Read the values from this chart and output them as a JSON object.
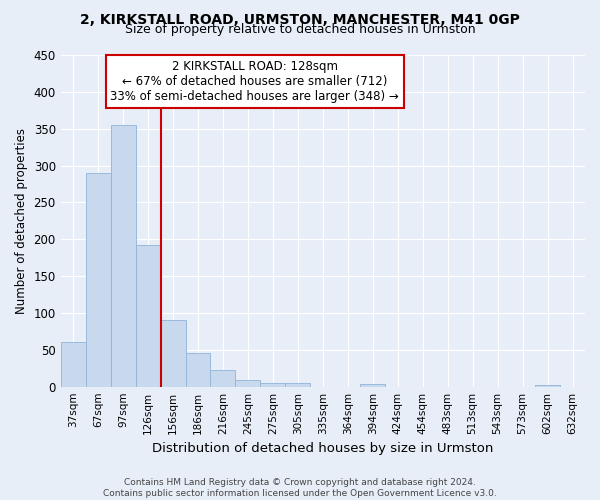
{
  "title1": "2, KIRKSTALL ROAD, URMSTON, MANCHESTER, M41 0GP",
  "title2": "Size of property relative to detached houses in Urmston",
  "xlabel": "Distribution of detached houses by size in Urmston",
  "ylabel": "Number of detached properties",
  "categories": [
    "37sqm",
    "67sqm",
    "97sqm",
    "126sqm",
    "156sqm",
    "186sqm",
    "216sqm",
    "245sqm",
    "275sqm",
    "305sqm",
    "335sqm",
    "364sqm",
    "394sqm",
    "424sqm",
    "454sqm",
    "483sqm",
    "513sqm",
    "543sqm",
    "573sqm",
    "602sqm",
    "632sqm"
  ],
  "values": [
    60,
    290,
    355,
    192,
    90,
    46,
    22,
    9,
    5,
    5,
    0,
    0,
    4,
    0,
    0,
    0,
    0,
    0,
    0,
    2,
    0
  ],
  "bar_color": "#c8d9ee",
  "bar_edge_color": "#8fb4d9",
  "property_line_index": 3,
  "line_color": "#cc0000",
  "annotation_text": "2 KIRKSTALL ROAD: 128sqm\n← 67% of detached houses are smaller (712)\n33% of semi-detached houses are larger (348) →",
  "annotation_box_color": "#ffffff",
  "annotation_edge_color": "#cc0000",
  "ylim": [
    0,
    450
  ],
  "yticks": [
    0,
    50,
    100,
    150,
    200,
    250,
    300,
    350,
    400,
    450
  ],
  "footer": "Contains HM Land Registry data © Crown copyright and database right 2024.\nContains public sector information licensed under the Open Government Licence v3.0.",
  "bg_color": "#e8eef8",
  "grid_color": "#ffffff",
  "fig_width": 6.0,
  "fig_height": 5.0
}
